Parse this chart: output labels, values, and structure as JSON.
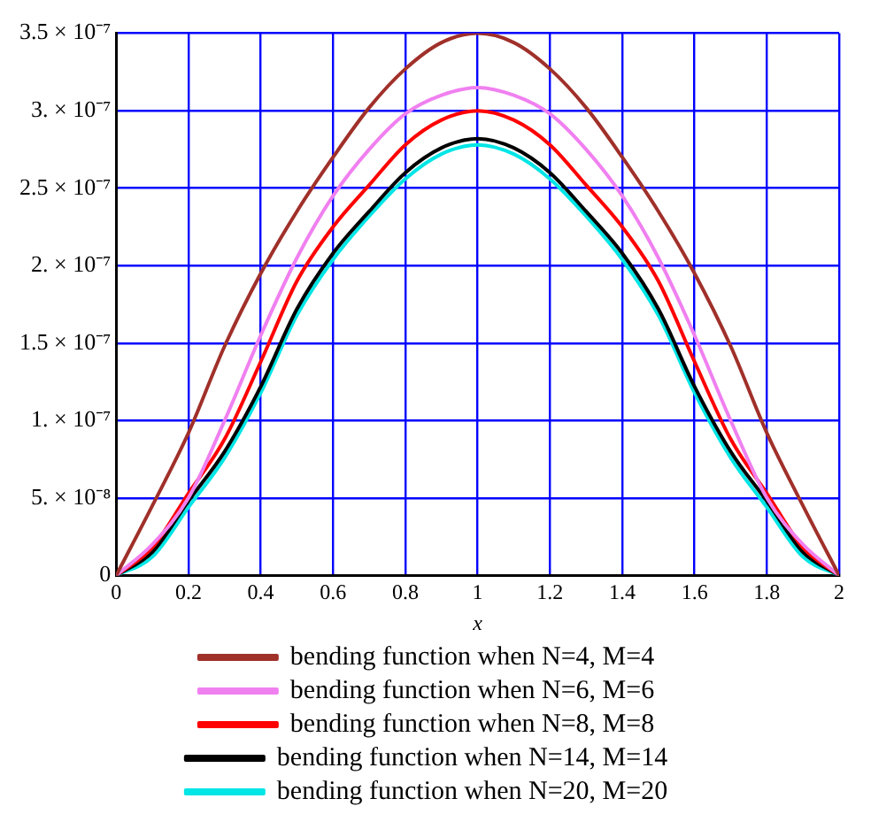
{
  "chart_data": {
    "type": "line",
    "xlabel": "x",
    "x": [
      0,
      0.1,
      0.2,
      0.3,
      0.4,
      0.5,
      0.6,
      0.7,
      0.8,
      0.9,
      1,
      1.1,
      1.2,
      1.3,
      1.4,
      1.5,
      1.6,
      1.7,
      1.8,
      1.9,
      2
    ],
    "series": [
      {
        "name": "bending function when N=4, M=4",
        "color": "#a0302a",
        "values": [
          0,
          4.5e-08,
          9.2e-08,
          1.48e-07,
          1.95e-07,
          2.35e-07,
          2.7e-07,
          3.02e-07,
          3.27e-07,
          3.44e-07,
          3.5e-07,
          3.44e-07,
          3.27e-07,
          3.02e-07,
          2.7e-07,
          2.35e-07,
          1.95e-07,
          1.48e-07,
          9.2e-08,
          4.5e-08,
          0
        ]
      },
      {
        "name": "bending function when N=6, M=6",
        "color": "#f080f0",
        "values": [
          0,
          2e-08,
          5e-08,
          1e-07,
          1.55e-07,
          2.05e-07,
          2.45e-07,
          2.75e-07,
          2.98e-07,
          3.1e-07,
          3.15e-07,
          3.1e-07,
          2.98e-07,
          2.75e-07,
          2.45e-07,
          2.05e-07,
          1.55e-07,
          1e-07,
          5e-08,
          2e-08,
          0
        ]
      },
      {
        "name": "bending function when N=8, M=8",
        "color": "#ff0000",
        "values": [
          0,
          1.8e-08,
          5.3e-08,
          8.8e-08,
          1.38e-07,
          1.9e-07,
          2.25e-07,
          2.52e-07,
          2.78e-07,
          2.94e-07,
          3e-07,
          2.94e-07,
          2.78e-07,
          2.52e-07,
          2.25e-07,
          1.9e-07,
          1.38e-07,
          8.8e-08,
          5.3e-08,
          1.8e-08,
          0
        ]
      },
      {
        "name": "bending function when N=14, M=14",
        "color": "#000000",
        "values": [
          0,
          1.5e-08,
          4.8e-08,
          8e-08,
          1.22e-07,
          1.72e-07,
          2.08e-07,
          2.35e-07,
          2.6e-07,
          2.76e-07,
          2.82e-07,
          2.76e-07,
          2.6e-07,
          2.35e-07,
          2.08e-07,
          1.72e-07,
          1.22e-07,
          8e-08,
          4.8e-08,
          1.5e-08,
          0
        ]
      },
      {
        "name": "bending function when N=20, M=20",
        "color": "#00e5e5",
        "values": [
          0,
          1.2e-08,
          4.4e-08,
          7.6e-08,
          1.18e-07,
          1.68e-07,
          2.04e-07,
          2.32e-07,
          2.56e-07,
          2.72e-07,
          2.78e-07,
          2.72e-07,
          2.56e-07,
          2.32e-07,
          2.04e-07,
          1.68e-07,
          1.18e-07,
          7.6e-08,
          4.4e-08,
          1.2e-08,
          0
        ]
      }
    ],
    "xlim": [
      0,
      2
    ],
    "xticks": [
      0,
      0.2,
      0.4,
      0.6,
      0.8,
      1,
      1.2,
      1.4,
      1.6,
      1.8,
      2
    ],
    "ylim": [
      0,
      3.5e-07
    ],
    "yticks": [
      {
        "value": 0,
        "label": "0"
      },
      {
        "value": 5e-08,
        "label": "5. × 10⁻⁸"
      },
      {
        "value": 1e-07,
        "label": "1. × 10⁻⁷"
      },
      {
        "value": 1.5e-07,
        "label": "1.5 × 10⁻⁷"
      },
      {
        "value": 2e-07,
        "label": "2. × 10⁻⁷"
      },
      {
        "value": 2.5e-07,
        "label": "2.5 × 10⁻⁷"
      },
      {
        "value": 3e-07,
        "label": "3. × 10⁻⁷"
      },
      {
        "value": 3.5e-07,
        "label": "3.5 × 10⁻⁷"
      }
    ],
    "grid": true,
    "legend": "bottom",
    "marker": "none",
    "line_style": "solid"
  }
}
